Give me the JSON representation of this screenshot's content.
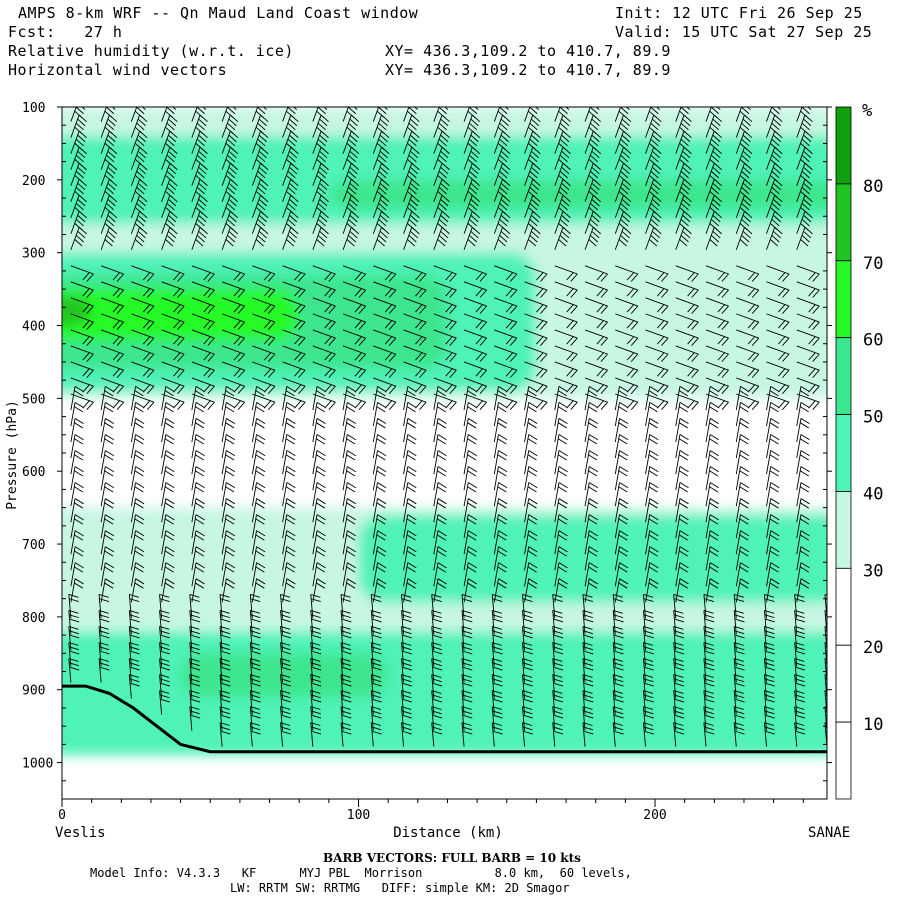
{
  "header": {
    "title": "AMPS 8-km WRF -- Qn Maud Land Coast window",
    "forecast": "Fcst:   27 h",
    "field1": "Relative humidity (w.r.t. ice)",
    "field2": "Horizontal wind vectors",
    "xy1": "XY= 436.3,109.2 to 410.7, 89.9",
    "xy2": "XY= 436.3,109.2 to 410.7, 89.9",
    "init": "Init: 12 UTC Fri 26 Sep 25",
    "valid": "Valid: 15 UTC Sat 27 Sep 25"
  },
  "footer": {
    "barb_title": "BARB VECTORS:  FULL BARB = 10 kts",
    "line1": "Model Info: V4.3.3   KF      MYJ PBL  Morrison          8.0 km,  60 levels,",
    "line2": "LW: RRTM SW: RRTMG   DIFF: simple KM: 2D Smagor"
  },
  "chart_data": {
    "type": "heatmap",
    "xlabel": "Distance (km)",
    "ylabel": "Pressure (hPa)",
    "xlim": [
      0,
      258
    ],
    "ylim": [
      1050,
      100
    ],
    "xticks": [
      0,
      100,
      200
    ],
    "yticks": [
      100,
      200,
      300,
      400,
      500,
      600,
      700,
      800,
      900,
      1000
    ],
    "left_endpoint": "Veslis",
    "right_endpoint": "SANAE",
    "colorbar": {
      "unit": "%",
      "levels": [
        10,
        20,
        30,
        40,
        50,
        60,
        70,
        80
      ],
      "colors": [
        "#ffffff",
        "#ffffff",
        "#ffffff",
        "#c7f6e3",
        "#4ff2b7",
        "#3ce68e",
        "#26fa26",
        "#20c420",
        "#0ea00e"
      ]
    },
    "humidity_features": [
      {
        "level": "30-40",
        "x": [
          0,
          258
        ],
        "p": [
          100,
          500
        ]
      },
      {
        "level": "40-50",
        "x": [
          0,
          258
        ],
        "p": [
          140,
          260
        ]
      },
      {
        "level": "40-50",
        "x": [
          0,
          160
        ],
        "p": [
          300,
          490
        ]
      },
      {
        "level": "50-60",
        "x": [
          0,
          130
        ],
        "p": [
          330,
          460
        ]
      },
      {
        "level": "60-70",
        "x": [
          0,
          80
        ],
        "p": [
          350,
          420
        ]
      },
      {
        "level": "70-80",
        "x": [
          0,
          10
        ],
        "p": [
          360,
          400
        ]
      },
      {
        "level": "50-60",
        "x": [
          90,
          258
        ],
        "p": [
          200,
          240
        ]
      },
      {
        "level": "30-40",
        "x": [
          0,
          258
        ],
        "p": [
          650,
          990
        ]
      },
      {
        "level": "40-50",
        "x": [
          100,
          258
        ],
        "p": [
          660,
          780
        ]
      },
      {
        "level": "40-50",
        "x": [
          0,
          258
        ],
        "p": [
          820,
          990
        ]
      },
      {
        "level": "50-60",
        "x": [
          40,
          110
        ],
        "p": [
          850,
          910
        ]
      }
    ],
    "terrain_surface_hpa": {
      "x": [
        0,
        8,
        16,
        24,
        32,
        40,
        50,
        100,
        150,
        200,
        258
      ],
      "p": [
        895,
        895,
        905,
        925,
        950,
        975,
        985,
        985,
        985,
        985,
        985
      ]
    },
    "wind_barbs_note": "Horizontal wind vectors, full barb = 10 kts"
  }
}
